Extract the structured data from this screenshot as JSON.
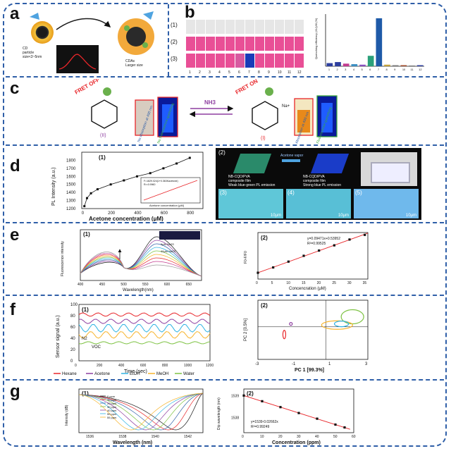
{
  "panels": {
    "a": {
      "label": "a",
      "cd_caption_line1": "CD",
      "cd_caption_line2": "particle",
      "cd_caption_line3": "size<3~5nm",
      "cda_caption_line1": "CDAs",
      "cda_caption_line2": "Larger size"
    },
    "b": {
      "label": "b",
      "rows": [
        "(1)",
        "(2)",
        "(3)"
      ],
      "columns": [
        "1",
        "2",
        "3",
        "4",
        "5",
        "6",
        "7",
        "8",
        "9",
        "10",
        "11",
        "12"
      ],
      "chart_ylabel": "Quenching efficiency (I0-I)/I0 (%)",
      "chart_data": {
        "type": "bar",
        "categories": [
          "1",
          "2",
          "3",
          "4",
          "5",
          "6",
          "7",
          "8",
          "9",
          "10",
          "11",
          "12"
        ],
        "values": [
          6,
          8,
          5,
          4,
          3,
          20,
          92,
          3,
          2,
          2,
          1,
          2
        ],
        "ylim": [
          0,
          100
        ]
      }
    },
    "c": {
      "label": "c",
      "fret_off": "FRET OFF",
      "fret_on": "FRET ON",
      "nh3": "NH3",
      "compound_ii": "(II)",
      "compound_i": "(I)",
      "no_absorption": "No absorption at 490 nm",
      "no_fluorescence": "No fluorescence quenching",
      "absorption": "Absorption at 490 nm",
      "fluorescence": "Fluorescence quenching",
      "na_plus": "Na+"
    },
    "d": {
      "label": "d",
      "sub1": "(1)",
      "sub2": "(2)",
      "sub3": "(3)",
      "sub4": "(4)",
      "sub5": "(5)",
      "ylabel": "PL Intensity (a.u.)",
      "xlabel": "Acetone concentration (μM)",
      "yticks": [
        "1200",
        "1300",
        "1400",
        "1500",
        "1600",
        "1700",
        "1800"
      ],
      "xticks": [
        "0",
        "200",
        "400",
        "600",
        "800"
      ],
      "inset_eq": "F=1829.024(1+0.363Kacetone)",
      "inset_r2": "R²=0.9960",
      "inset_ylabel": "PL Intensity (a.u.)",
      "inset_xlabel": "Acetone concentration (μM)",
      "film_left1": "NB-CQD/PVA",
      "film_left2": "composite film",
      "film_left3": "Weak blue-green PL emission",
      "vapor": "Acetone vapor",
      "film_right1": "NB-CQD/PVA",
      "film_right2": "composite film",
      "film_right3": "Strong blue PL emission",
      "scale": "10μm",
      "chart_data": {
        "type": "line",
        "x": [
          0,
          20,
          50,
          100,
          200,
          300,
          400,
          500,
          600,
          700,
          800
        ],
        "y": [
          1230,
          1330,
          1390,
          1440,
          1500,
          1550,
          1600,
          1640,
          1700,
          1760,
          1830
        ],
        "ylim": [
          1200,
          1900
        ],
        "xlim": [
          -20,
          900
        ]
      }
    },
    "e": {
      "label": "e",
      "sub1": "(1)",
      "sub2": "(2)",
      "ylabel1": "Fluorescence intensity",
      "xlabel1": "Wavelength(nm)",
      "xticks1": [
        "400",
        "450",
        "500",
        "550",
        "600",
        "650"
      ],
      "na2s_0": "0μM Na2S",
      "na2s_40": "40μM Na2S",
      "eq": "y=0.09471x+0.53952",
      "r2": "R²=0.99525",
      "ylabel2": "F0-F/F0",
      "xlabel2": "Concencration (μM)",
      "xticks2": [
        "0",
        "5",
        "10",
        "15",
        "20",
        "25",
        "30",
        "35"
      ],
      "chart_data": {
        "type": "scatter",
        "x": [
          0,
          5,
          10,
          15,
          20,
          25,
          30,
          35
        ],
        "y": [
          0.54,
          1.0,
          1.5,
          2.0,
          2.45,
          2.9,
          3.4,
          3.8
        ],
        "xlim": [
          0,
          36
        ],
        "ylim": [
          0,
          4
        ]
      }
    },
    "f": {
      "label": "f",
      "sub1": "(1)",
      "sub2": "(2)",
      "ylabel1": "Sensor signal (a.u.)",
      "xlabel1": "Time (sec)",
      "yticks1": [
        "0",
        "20",
        "40",
        "60",
        "80",
        "100"
      ],
      "xticks1": [
        "0",
        "200",
        "400",
        "600",
        "800",
        "1000",
        "1200"
      ],
      "n2": "N2",
      "voc": "VOC",
      "ylabel2": "PC 2 [0.5%]",
      "xlabel2": "PC 1 [99.3%]",
      "xticks2": [
        "-3",
        "-1",
        "1",
        "3"
      ],
      "legend": [
        {
          "name": "Hexane",
          "color": "#e8262a"
        },
        {
          "name": "Acetone",
          "color": "#8e3fa0"
        },
        {
          "name": "EtOH",
          "color": "#2fb3e3"
        },
        {
          "name": "MeOH",
          "color": "#f7b42c"
        },
        {
          "name": "Water",
          "color": "#7dc242"
        }
      ]
    },
    "g": {
      "label": "g",
      "sub1": "(1)",
      "sub2": "(2)",
      "ylabel1": "Intensity (dB)",
      "xlabel1": "Wavelength (nm)",
      "xticks1": [
        "1536",
        "1538",
        "1540",
        "1542"
      ],
      "ppm_legend": [
        "0 ppm",
        "10 ppm",
        "20 ppm",
        "30 ppm",
        "40 ppm",
        "50 ppm",
        "55 ppm"
      ],
      "eq": "y=1539-0.02662x",
      "r2": "R²=0.99249",
      "ylabel2": "Dip wavelength (nm)",
      "xlabel2": "Concentration (ppm)",
      "xticks2": [
        "0",
        "10",
        "20",
        "30",
        "40",
        "50",
        "60"
      ],
      "yticks2": [
        "1539",
        "1538"
      ],
      "chart_data": {
        "type": "scatter",
        "x": [
          0,
          10,
          20,
          30,
          40,
          50,
          55
        ],
        "y": [
          1539.0,
          1538.74,
          1538.47,
          1538.2,
          1537.94,
          1537.67,
          1537.54
        ],
        "xlim": [
          0,
          60
        ],
        "ylim": [
          1537.3,
          1539.3
        ]
      }
    }
  }
}
